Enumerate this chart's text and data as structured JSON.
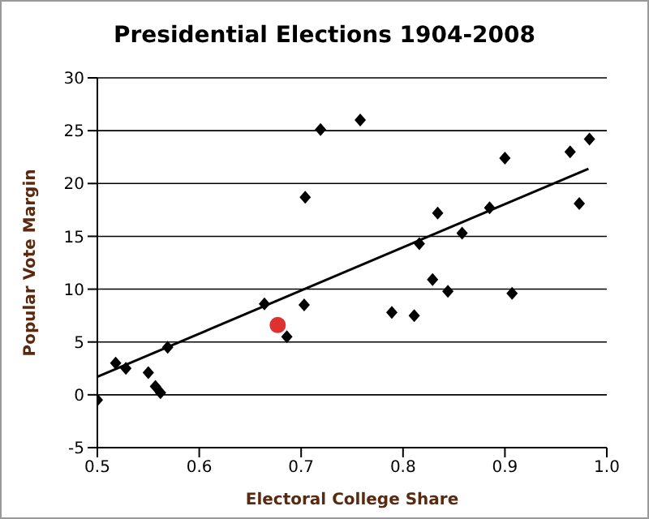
{
  "chart_data": {
    "type": "scatter",
    "title": "Presidential Elections 1904-2008",
    "xlabel": "Electoral College Share",
    "ylabel": "Popular Vote Margin",
    "xlim": [
      0.5,
      1.0
    ],
    "xticks": [
      0.5,
      0.6,
      0.7,
      0.8,
      0.9,
      {
        "value": 1.0,
        "label": "1.0"
      }
    ],
    "ylim": [
      -5,
      30
    ],
    "yticks": [
      -5,
      0,
      5,
      10,
      15,
      20,
      25,
      30
    ],
    "grid": "y",
    "marker": "diamond",
    "series": [
      {
        "color": "#000000",
        "x": [
          0.5,
          0.518,
          0.528,
          0.55,
          0.557,
          0.562,
          0.569,
          0.664,
          0.686,
          0.703,
          0.704,
          0.719,
          0.758,
          0.789,
          0.811,
          0.816,
          0.829,
          0.834,
          0.844,
          0.858,
          0.885,
          0.9,
          0.907,
          0.964,
          0.973,
          0.983
        ],
        "values": [
          -0.5,
          3.0,
          2.5,
          2.1,
          0.8,
          0.2,
          4.5,
          8.6,
          5.5,
          8.5,
          18.7,
          25.1,
          26.0,
          7.8,
          7.5,
          14.3,
          10.9,
          17.2,
          9.8,
          15.3,
          17.7,
          22.4,
          9.6,
          23.0,
          18.1,
          24.2
        ]
      },
      {
        "color": "#e03030",
        "marker": "circle",
        "x": [
          0.677
        ],
        "values": [
          6.6
        ]
      },
      {
        "type": "line",
        "color": "#000000",
        "marker": "none",
        "x": [
          0.5,
          0.982
        ],
        "values": [
          1.7,
          21.4
        ]
      }
    ]
  }
}
